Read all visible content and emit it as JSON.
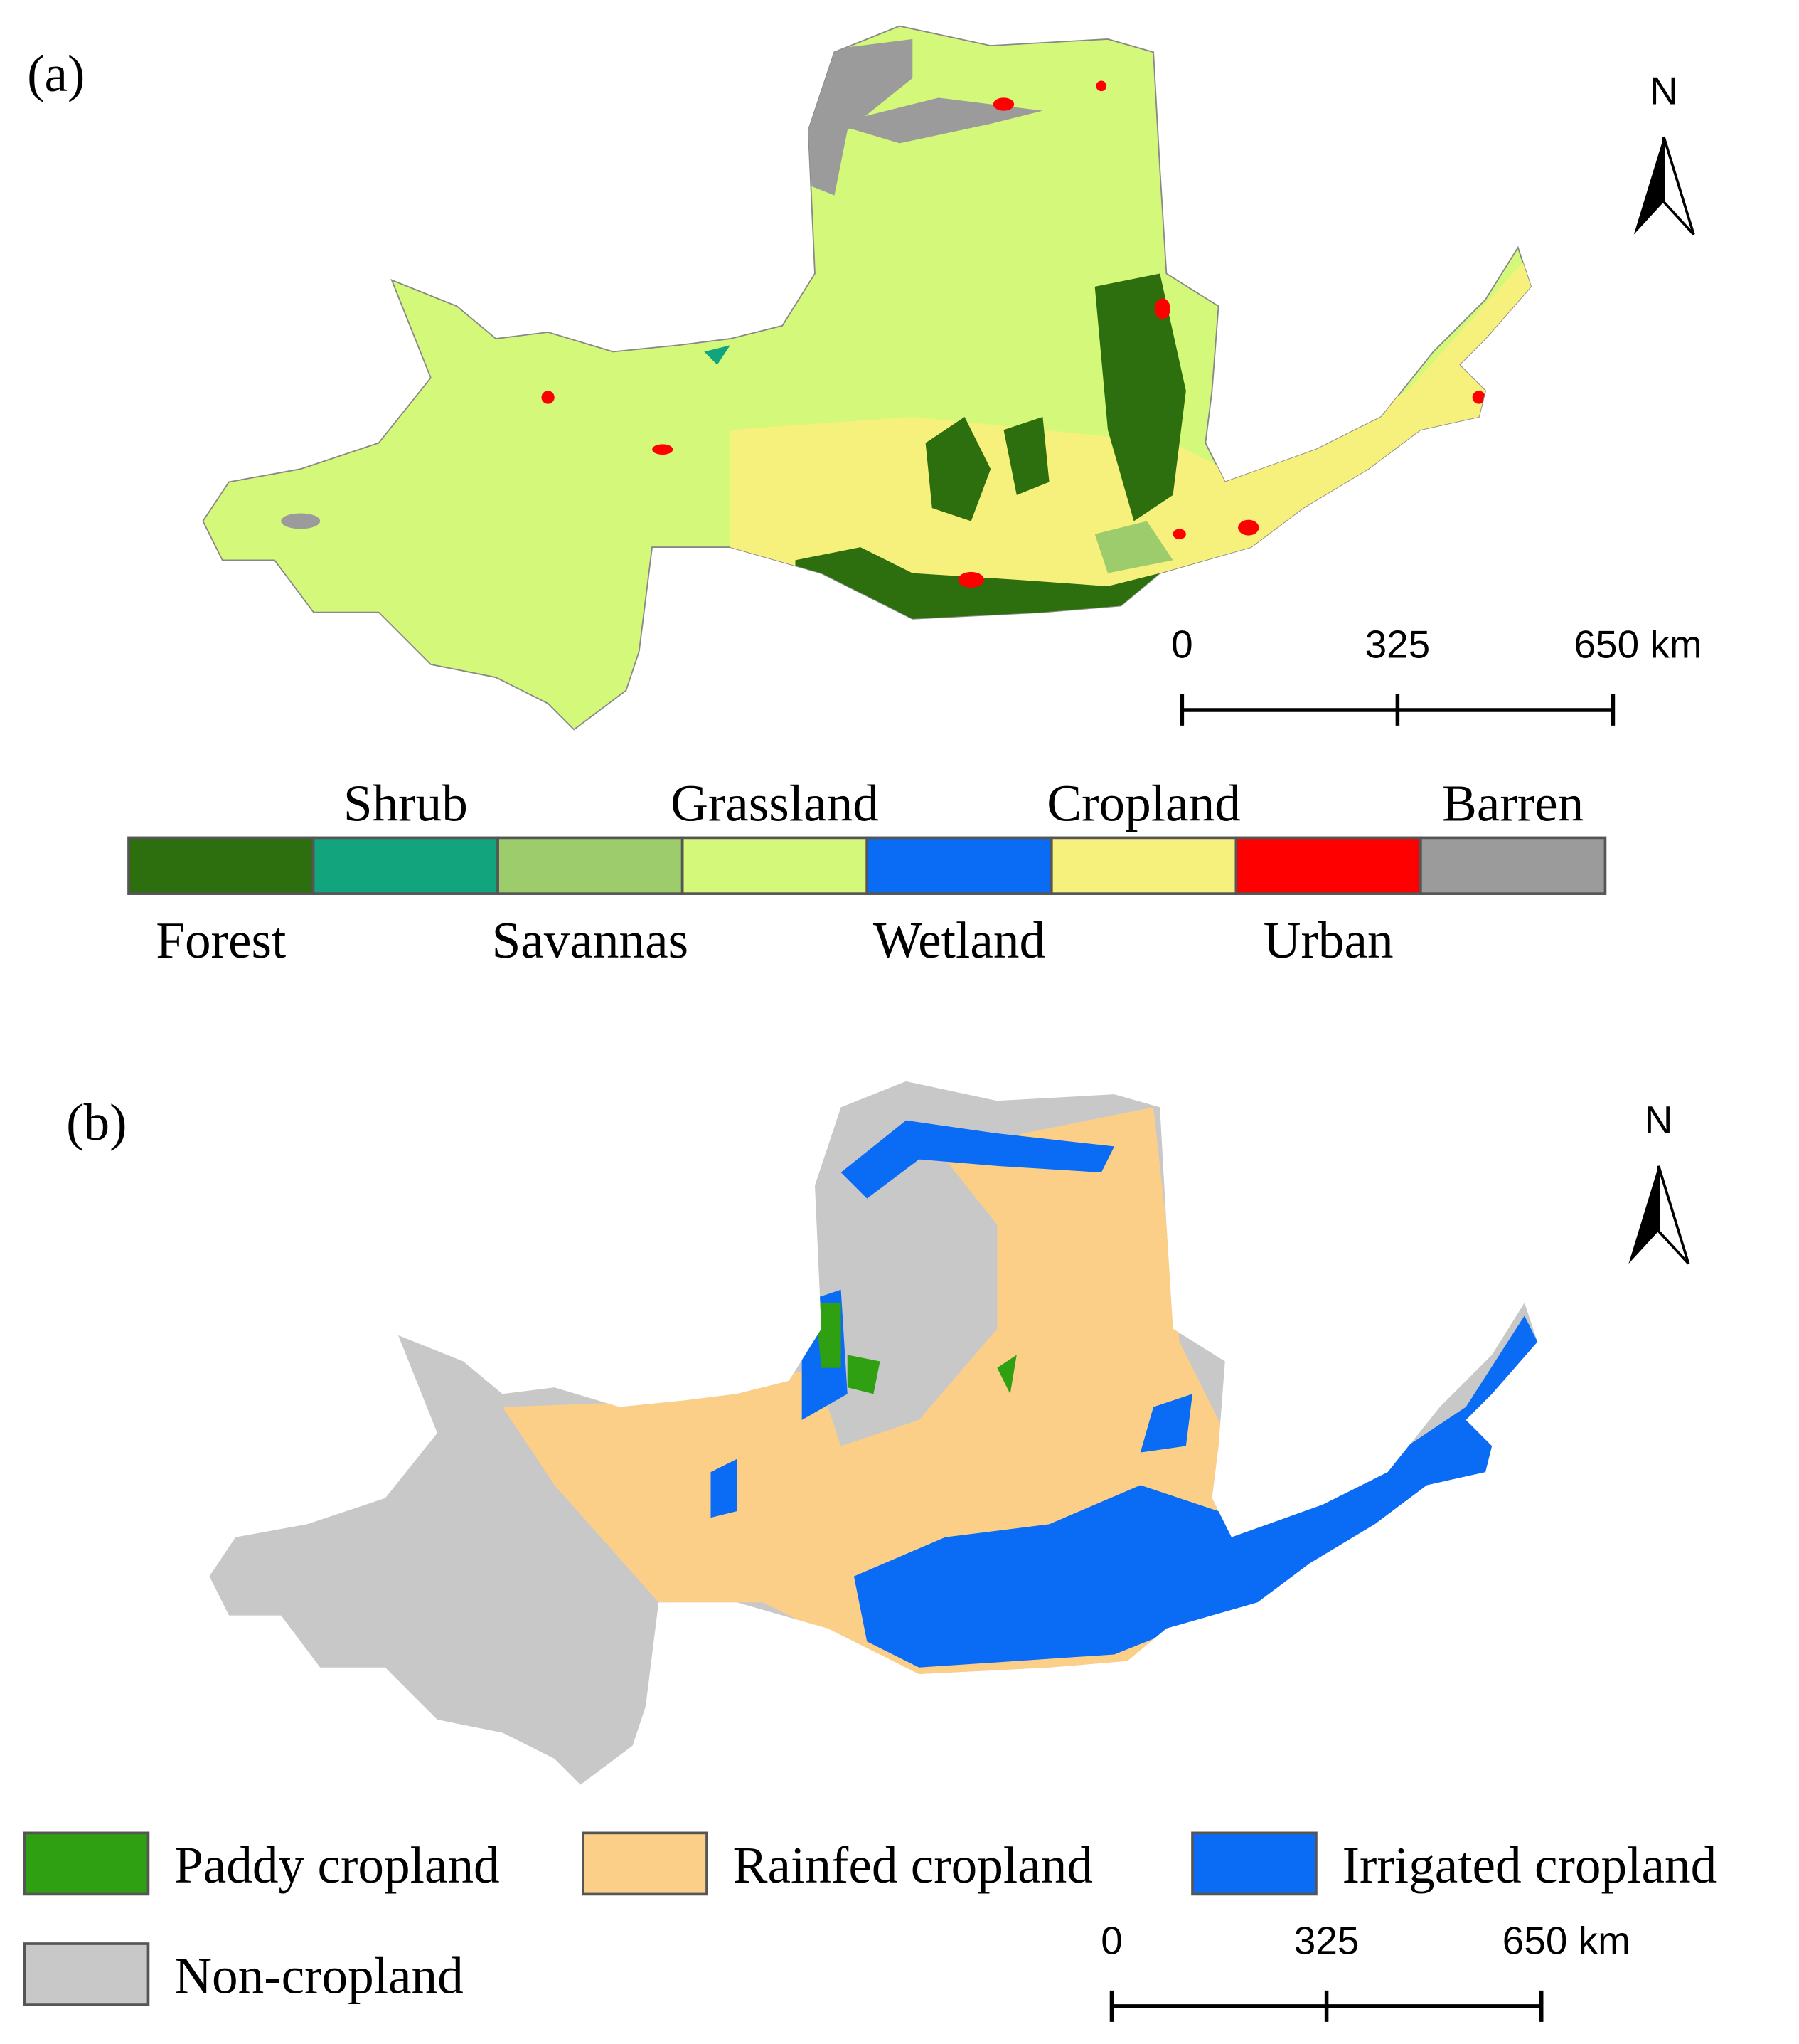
{
  "panels": [
    {
      "label": "(a)",
      "north": "N",
      "scale_bar": [
        "0",
        "325",
        "650 km"
      ],
      "legend": [
        {
          "label": "Forest",
          "color": "#2d6e0f"
        },
        {
          "label": "Shrub",
          "color": "#12a47c"
        },
        {
          "label": "Savannas",
          "color": "#9ccc6c"
        },
        {
          "label": "Grassland",
          "color": "#d4f97a"
        },
        {
          "label": "Wetland",
          "color": "#0a6cf5"
        },
        {
          "label": "Cropland",
          "color": "#f6f07d"
        },
        {
          "label": "Urban",
          "color": "#ff0000"
        },
        {
          "label": "Barren",
          "color": "#9b9b9b"
        }
      ]
    },
    {
      "label": "(b)",
      "north": "N",
      "scale_bar": [
        "0",
        "325",
        "650 km"
      ],
      "legend": [
        {
          "label": "Paddy cropland",
          "color": "#2ea012"
        },
        {
          "label": "Rainfed  cropland",
          "color": "#fbcf88"
        },
        {
          "label": "Irrigated cropland",
          "color": "#0a6cf5"
        },
        {
          "label": "Non-cropland",
          "color": "#c8c8c8"
        }
      ]
    }
  ]
}
